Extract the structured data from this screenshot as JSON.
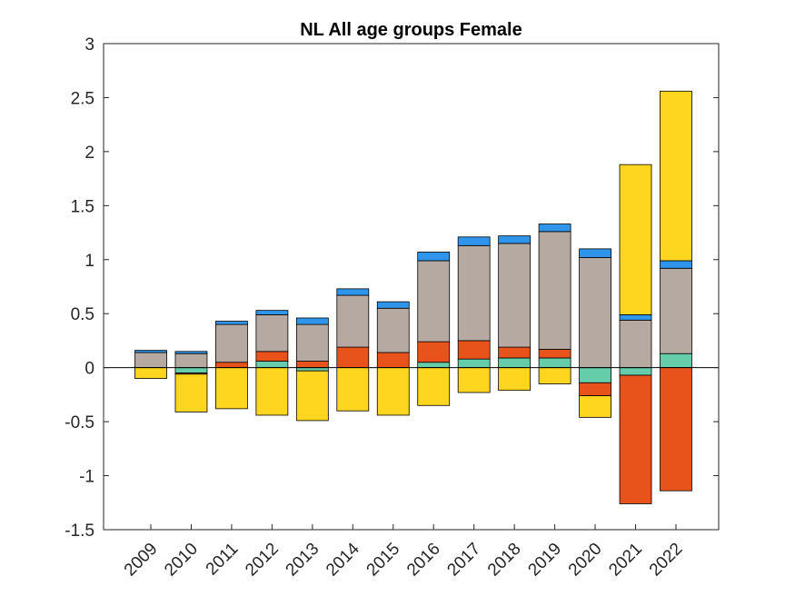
{
  "chart_data": {
    "type": "bar",
    "stacked": true,
    "title": "NL  All age groups  Female",
    "xlabel": "",
    "ylabel": "",
    "ylim": [
      -1.5,
      3
    ],
    "yticks": [
      -1.5,
      -1,
      -0.5,
      0,
      0.5,
      1,
      1.5,
      2,
      2.5,
      3
    ],
    "ytick_labels": [
      "-1.5",
      "-1",
      "-0.5",
      "0",
      "0.5",
      "1",
      "1.5",
      "2",
      "2.5",
      "3"
    ],
    "categories": [
      "2009",
      "2010",
      "2011",
      "2012",
      "2013",
      "2014",
      "2015",
      "2016",
      "2017",
      "2018",
      "2019",
      "2020",
      "2021",
      "2022"
    ],
    "grid": false,
    "legend": "none",
    "series": [
      {
        "color": "#66CDAA",
        "values": [
          0.0,
          -0.05,
          0.0,
          0.06,
          -0.03,
          0.0,
          0.0,
          0.05,
          0.08,
          0.09,
          0.09,
          -0.14,
          -0.07,
          0.13
        ]
      },
      {
        "color": "#E8531B",
        "values": [
          0.0,
          -0.01,
          0.05,
          0.09,
          0.06,
          0.19,
          0.14,
          0.19,
          0.17,
          0.1,
          0.08,
          -0.12,
          -1.19,
          -1.14
        ]
      },
      {
        "color": "#B5A9A2",
        "values": [
          0.14,
          0.13,
          0.35,
          0.34,
          0.34,
          0.48,
          0.41,
          0.75,
          0.88,
          0.96,
          1.09,
          1.02,
          0.44,
          0.79
        ]
      },
      {
        "color": "#2F95EB",
        "values": [
          0.02,
          0.02,
          0.03,
          0.04,
          0.06,
          0.06,
          0.06,
          0.08,
          0.08,
          0.07,
          0.07,
          0.08,
          0.05,
          0.07
        ]
      },
      {
        "color": "#FED51F",
        "values": [
          -0.1,
          -0.35,
          -0.38,
          -0.44,
          -0.46,
          -0.4,
          -0.44,
          -0.35,
          -0.23,
          -0.21,
          -0.15,
          -0.2,
          1.39,
          1.57
        ]
      }
    ]
  }
}
